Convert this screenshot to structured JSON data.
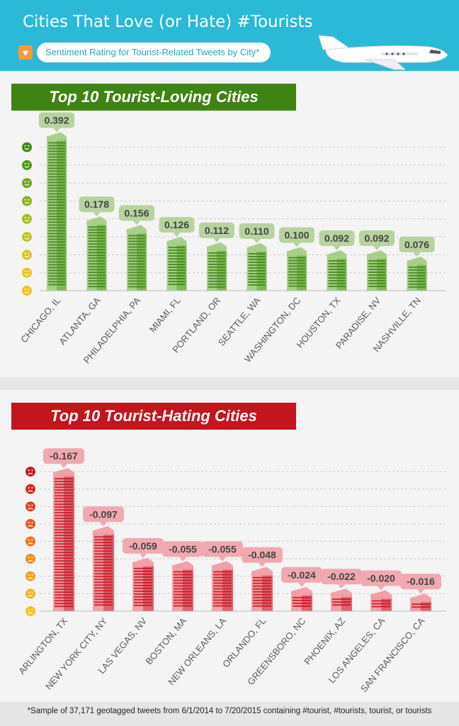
{
  "header": {
    "title": "Cities That Love (or Hate) #Tourists",
    "subtitle": "Sentiment Rating for Tourist-Related Tweets by City*"
  },
  "colors": {
    "header_bg": "#2ab9d6",
    "loving": "#3f8413",
    "hating": "#c4141d"
  },
  "icons": [
    "heart-icon",
    "airplane-icon",
    "smiley-face-icon",
    "frowny-face-icon"
  ],
  "chart_data": [
    {
      "type": "bar",
      "title": "Top 10 Tourist-Loving Cities",
      "categories": [
        "CHICAGO, IL",
        "ATLANTA, GA",
        "PHILADELPHIA, PA",
        "MIAMI, FL",
        "PORTLAND, OR",
        "SEATTLE, WA",
        "WASHINGTON, DC",
        "HOUSTON, TX",
        "PARADISE, NV",
        "NASHVILLE, TN"
      ],
      "values": [
        0.392,
        0.178,
        0.156,
        0.126,
        0.112,
        0.11,
        0.1,
        0.092,
        0.092,
        0.076
      ],
      "labels": [
        "0.392",
        "0.178",
        "0.156",
        "0.126",
        "0.112",
        "0.110",
        "0.100",
        "0.092",
        "0.092",
        "0.076"
      ],
      "ylim": [
        0,
        0.4
      ],
      "grid": true,
      "color": "#3f8413"
    },
    {
      "type": "bar",
      "title": "Top 10 Tourist-Hating Cities",
      "categories": [
        "ARLINGTON, TX",
        "NEW YORK CITY, NY",
        "LAS VEGAS, NV",
        "BOSTON, MA",
        "NEW ORLEANS, LA",
        "ORLANDO, FL",
        "GREENSBORO, NC",
        "PHOENIX, AZ",
        "LOS ANGELES, CA",
        "SAN FRANCISCO, CA"
      ],
      "values": [
        -0.167,
        -0.097,
        -0.059,
        -0.055,
        -0.055,
        -0.048,
        -0.024,
        -0.022,
        -0.02,
        -0.016
      ],
      "labels": [
        "-0.167",
        "-0.097",
        "-0.059",
        "-0.055",
        "-0.055",
        "-0.048",
        "-0.024",
        "-0.022",
        "-0.020",
        "-0.016"
      ],
      "ylim": [
        0,
        -0.18
      ],
      "grid": true,
      "color": "#c4141d"
    }
  ],
  "footnote": "*Sample of 37,171 geotagged tweets from 6/1/2014 to 7/20/2015 containing #tourist, #tourists, tourist, or tourists"
}
